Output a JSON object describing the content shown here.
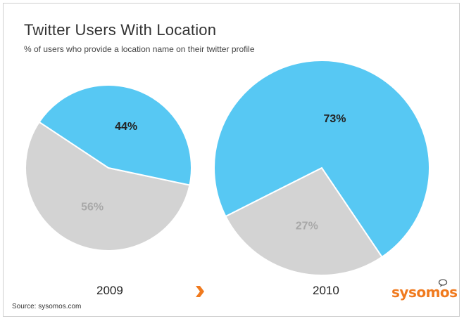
{
  "header": {
    "title": "Twitter Users With Location",
    "subtitle": "% of users who provide a location name on their twitter profile"
  },
  "chart_data": [
    {
      "type": "pie",
      "label": "2009",
      "slices": [
        {
          "name": "",
          "value": 56,
          "label": "56%",
          "color": "#d3d3d3",
          "label_color": "#a8a8a8"
        },
        {
          "name": "",
          "value": 44,
          "label": "44%",
          "color": "#57c8f3",
          "label_color": "#222222"
        }
      ]
    },
    {
      "type": "pie",
      "label": "2010",
      "slices": [
        {
          "name": "",
          "value": 27,
          "label": "27%",
          "color": "#d3d3d3",
          "label_color": "#a8a8a8"
        },
        {
          "name": "",
          "value": 73,
          "label": "73%",
          "color": "#57c8f3",
          "label_color": "#222222"
        }
      ]
    }
  ],
  "footer": {
    "source": "Source: sysomos.com",
    "brand": "sysomos",
    "arrow_icon": "chevron-right-icon",
    "arrow_color": "#f07a1e"
  }
}
